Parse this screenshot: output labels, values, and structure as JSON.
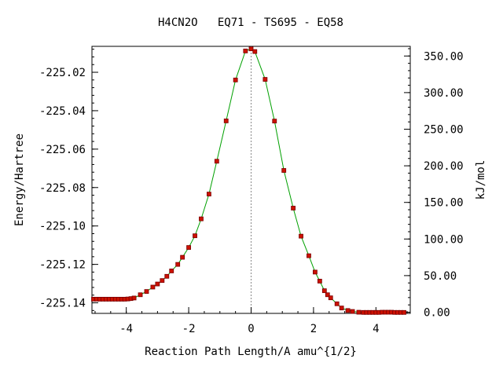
{
  "chart_data": {
    "type": "scatter",
    "title": "H4CN2O   EQ71 - TS695 - EQ58",
    "xlabel": "Reaction Path Length/A amu^{1/2}",
    "ylabel_left": "Energy/Hartree",
    "ylabel_right": "kJ/mol",
    "xlim": [
      -5.1,
      5.1
    ],
    "ylim_left": [
      -225.1455,
      -225.0065
    ],
    "ylim_right": [
      -1.6,
      363.2
    ],
    "x_ticks": [
      {
        "value": -4,
        "label": "-4"
      },
      {
        "value": -2,
        "label": "-2"
      },
      {
        "value": 0,
        "label": "0"
      },
      {
        "value": 2,
        "label": "2"
      },
      {
        "value": 4,
        "label": "4"
      }
    ],
    "y_ticks_left": [
      {
        "value": -225.02,
        "label": "-225.02"
      },
      {
        "value": -225.04,
        "label": "-225.04"
      },
      {
        "value": -225.06,
        "label": "-225.06"
      },
      {
        "value": -225.08,
        "label": "-225.08"
      },
      {
        "value": -225.1,
        "label": "-225.10"
      },
      {
        "value": -225.12,
        "label": "-225.12"
      },
      {
        "value": -225.14,
        "label": "-225.14"
      }
    ],
    "y_ticks_right": [
      {
        "value": 0,
        "label": "0.00"
      },
      {
        "value": 50,
        "label": "50.00"
      },
      {
        "value": 100,
        "label": "100.00"
      },
      {
        "value": 150,
        "label": "150.00"
      },
      {
        "value": 200,
        "label": "200.00"
      },
      {
        "value": 250,
        "label": "250.00"
      },
      {
        "value": 300,
        "label": "300.00"
      },
      {
        "value": 350,
        "label": "350.00"
      }
    ],
    "ts_marker_x": 0,
    "colors": {
      "curve": "#00a000",
      "points": "#cc1100",
      "point_edge": "#7a0000",
      "ts_line": "#888888",
      "axes": "#000000"
    },
    "series": [
      {
        "x": [
          -5.05,
          -4.95,
          -4.85,
          -4.75,
          -4.65,
          -4.55,
          -4.45,
          -4.35,
          -4.25,
          -4.15,
          -4.05,
          -3.95,
          -3.85,
          -3.75,
          -3.55,
          -3.35,
          -3.15,
          -3.0,
          -2.85,
          -2.7,
          -2.55,
          -2.35,
          -2.2,
          -2.0,
          -1.8,
          -1.6,
          -1.35,
          -1.1,
          -0.8,
          -0.5,
          -0.18,
          0.0,
          0.12,
          0.45,
          0.75,
          1.05,
          1.35,
          1.6,
          1.85,
          2.05,
          2.2,
          2.35,
          2.45,
          2.55,
          2.75,
          2.9,
          3.1,
          3.25,
          3.45,
          3.6,
          3.7,
          3.8,
          3.9,
          4.0,
          4.1,
          4.2,
          4.3,
          4.4,
          4.5,
          4.6,
          4.7,
          4.8,
          4.9
        ],
        "y": [
          -225.1381,
          -225.1381,
          -225.1381,
          -225.1381,
          -225.1381,
          -225.1381,
          -225.1381,
          -225.1381,
          -225.1381,
          -225.1381,
          -225.1381,
          -225.138,
          -225.1378,
          -225.1375,
          -225.1358,
          -225.1341,
          -225.1318,
          -225.1302,
          -225.1284,
          -225.1262,
          -225.1234,
          -225.12,
          -225.1163,
          -225.1112,
          -225.1051,
          -225.0963,
          -225.0834,
          -225.0663,
          -225.0453,
          -225.024,
          -225.0089,
          -225.0078,
          -225.0092,
          -225.0237,
          -225.0454,
          -225.0711,
          -225.0907,
          -225.1053,
          -225.1155,
          -225.124,
          -225.1287,
          -225.1337,
          -225.1358,
          -225.1374,
          -225.1405,
          -225.1427,
          -225.144,
          -225.1445,
          -225.1449,
          -225.145,
          -225.145,
          -225.145,
          -225.145,
          -225.145,
          -225.145,
          -225.1449,
          -225.1449,
          -225.1449,
          -225.1449,
          -225.145,
          -225.145,
          -225.145,
          -225.145
        ]
      }
    ]
  }
}
